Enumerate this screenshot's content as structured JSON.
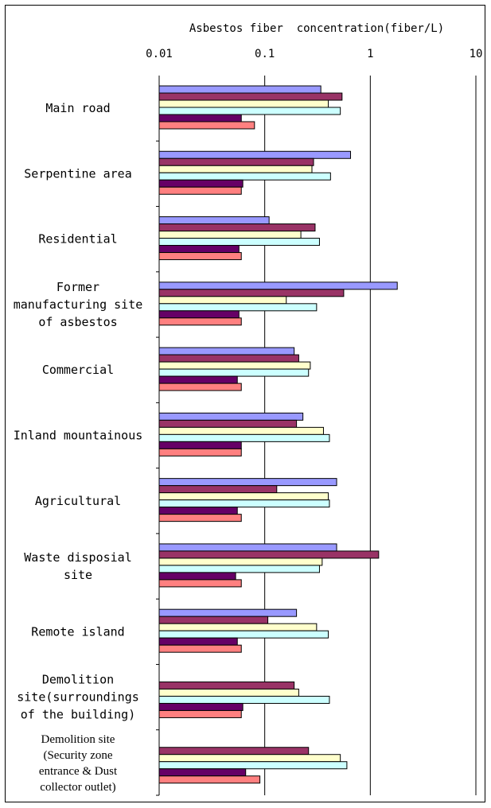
{
  "chart_data": {
    "type": "bar",
    "orientation": "horizontal",
    "title": "Asbestos fiber  concentration(fiber/L)",
    "x_scale": "log",
    "xlim": [
      0.01,
      10
    ],
    "x_ticks": [
      "0.01",
      "0.1",
      "1",
      "10"
    ],
    "grid": "vertical",
    "legend": "none",
    "categories": [
      "Main road",
      "Serpentine area",
      "Residential",
      "Former manufacturing site of asbestos",
      "Commercial",
      "Inland mountainous",
      "Agricultural",
      "Waste disposial site",
      "Remote island",
      "Demolition site(surroundings of the building)",
      "Demolition site (Security zone entrance & Dust collector outlet)"
    ],
    "series": [
      {
        "color": "#9999ff",
        "values": [
          0.34,
          0.65,
          0.11,
          1.8,
          0.19,
          0.23,
          0.48,
          0.48,
          0.2,
          null,
          null
        ]
      },
      {
        "color": "#993366",
        "values": [
          0.54,
          0.29,
          0.3,
          0.56,
          0.21,
          0.2,
          0.13,
          1.2,
          0.107,
          0.19,
          0.26
        ]
      },
      {
        "color": "#ffffcc",
        "values": [
          0.4,
          0.28,
          0.22,
          0.16,
          0.27,
          0.36,
          0.4,
          0.35,
          0.31,
          0.21,
          0.52
        ]
      },
      {
        "color": "#ccffff",
        "values": [
          0.52,
          0.42,
          0.33,
          0.31,
          0.26,
          0.41,
          0.41,
          0.33,
          0.4,
          0.41,
          0.6
        ]
      },
      {
        "color": "#660066",
        "values": [
          0.06,
          0.062,
          0.057,
          0.057,
          0.055,
          0.06,
          0.055,
          0.053,
          0.055,
          0.062,
          0.066
        ]
      },
      {
        "color": "#ff8080",
        "values": [
          0.08,
          0.06,
          0.06,
          0.06,
          0.06,
          0.06,
          0.06,
          0.06,
          0.06,
          0.06,
          0.09
        ]
      }
    ]
  }
}
